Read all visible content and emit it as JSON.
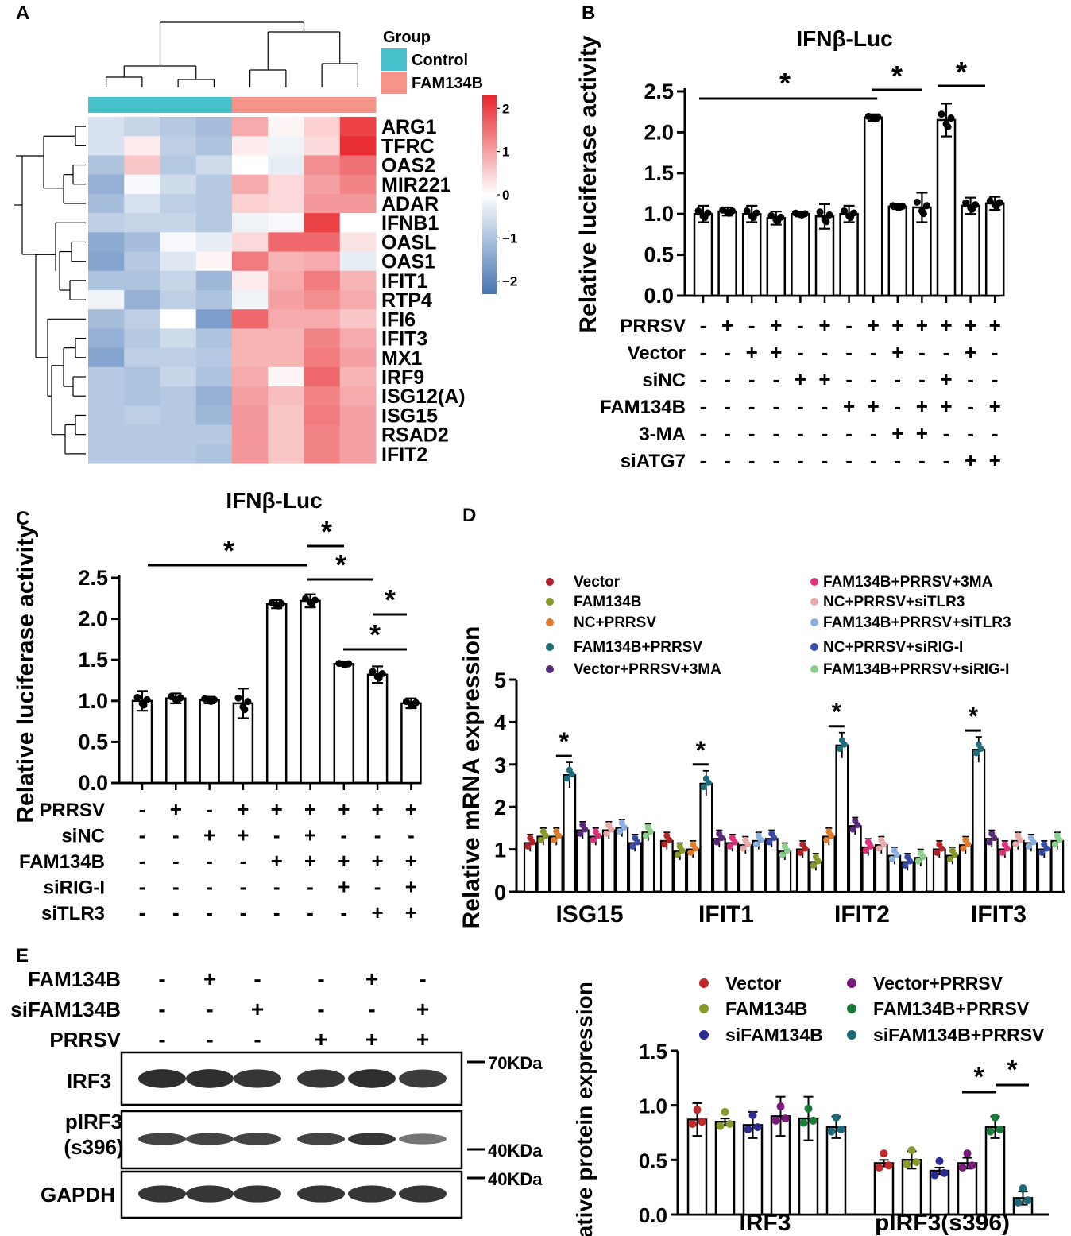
{
  "chart_data": [
    {
      "panel": "A",
      "type": "heatmap",
      "title": "",
      "legend_title": "Group",
      "groups": [
        {
          "name": "Control",
          "color": "#47c2cc"
        },
        {
          "name": "FAM134B",
          "color": "#f6948a"
        }
      ],
      "genes": [
        "ARG1",
        "TFRC",
        "OAS2",
        "MIR221",
        "ADAR",
        "IFNB1",
        "OASL",
        "OAS1",
        "IFIT1",
        "RTP4",
        "IFI6",
        "IFIT3",
        "MX1",
        "IRF9",
        "ISG12(A)",
        "ISG15",
        "RSAD2",
        "IFIT2"
      ],
      "values": [
        [
          -0.5,
          -0.7,
          -0.9,
          -1.1,
          0.9,
          0.1,
          0.5,
          2.0
        ],
        [
          -0.5,
          0.2,
          -0.8,
          -1.0,
          0.2,
          -0.2,
          0.4,
          2.2
        ],
        [
          -1.0,
          0.6,
          -0.9,
          -0.6,
          0.0,
          -0.3,
          1.2,
          1.5
        ],
        [
          -1.3,
          -0.1,
          -0.6,
          -0.9,
          0.9,
          0.4,
          1.0,
          1.3
        ],
        [
          -1.1,
          -0.5,
          -0.8,
          -0.9,
          0.5,
          0.4,
          1.1,
          1.1
        ],
        [
          -0.8,
          -0.7,
          -0.7,
          -0.9,
          -0.2,
          -0.1,
          2.0,
          0.0
        ],
        [
          -1.4,
          -1.1,
          -0.1,
          -0.3,
          0.4,
          1.6,
          1.6,
          0.3
        ],
        [
          -1.5,
          -0.9,
          -0.4,
          0.1,
          1.4,
          0.8,
          0.9,
          -0.3
        ],
        [
          -1.0,
          -1.0,
          -0.7,
          -1.2,
          0.2,
          0.9,
          1.4,
          0.8
        ],
        [
          -0.2,
          -1.3,
          -0.8,
          -1.0,
          -0.2,
          1.0,
          1.2,
          0.9
        ],
        [
          -1.1,
          -0.8,
          0.0,
          -1.6,
          1.6,
          0.9,
          0.9,
          0.6
        ],
        [
          -1.3,
          -0.9,
          -0.6,
          -1.0,
          0.8,
          0.8,
          1.3,
          0.9
        ],
        [
          -1.5,
          -0.8,
          -0.8,
          -0.9,
          0.8,
          0.8,
          1.4,
          1.0
        ],
        [
          -0.9,
          -1.0,
          -0.7,
          -1.0,
          0.9,
          0.1,
          1.6,
          0.8
        ],
        [
          -0.9,
          -1.0,
          -0.9,
          -1.3,
          1.0,
          0.7,
          1.3,
          0.9
        ],
        [
          -0.9,
          -0.8,
          -0.9,
          -1.2,
          1.1,
          0.6,
          1.4,
          1.0
        ],
        [
          -0.9,
          -0.9,
          -0.9,
          -0.9,
          1.1,
          0.6,
          1.3,
          1.0
        ],
        [
          -0.9,
          -0.9,
          -0.9,
          -1.0,
          1.1,
          0.6,
          1.3,
          1.0
        ]
      ],
      "colorbar": {
        "min": -2.3,
        "max": 2.3,
        "ticks": [
          "2",
          "1",
          "0",
          "−1",
          "−2"
        ],
        "low_color": "#4575b4",
        "mid_color": "#ffffff",
        "high_color": "#e8262b"
      }
    },
    {
      "panel": "B",
      "type": "bar",
      "title": "IFNβ-Luc",
      "ylabel": "Relative luciferase activity",
      "ylim": [
        0,
        2.5
      ],
      "yticks": [
        "0.0",
        "0.5",
        "1.0",
        "1.5",
        "2.0",
        "2.5"
      ],
      "values": [
        1.0,
        1.03,
        1.0,
        0.95,
        1.0,
        0.97,
        1.0,
        2.18,
        1.09,
        1.08,
        2.15,
        1.1,
        1.13
      ],
      "errors": [
        0.1,
        0.05,
        0.1,
        0.08,
        0.03,
        0.15,
        0.1,
        0.04,
        0.03,
        0.18,
        0.2,
        0.1,
        0.08
      ],
      "conditions": [
        {
          "label": "PRRSV",
          "signs": [
            "-",
            "+",
            "-",
            "+",
            "-",
            "+",
            "-",
            "+",
            "+",
            "+",
            "+",
            "+",
            "+"
          ]
        },
        {
          "label": "Vector",
          "signs": [
            "-",
            "-",
            "+",
            "+",
            "-",
            "-",
            "-",
            "-",
            "+",
            "-",
            "-",
            "+",
            "-"
          ]
        },
        {
          "label": "siNC",
          "signs": [
            "-",
            "-",
            "-",
            "-",
            "+",
            "+",
            "-",
            "-",
            "-",
            "-",
            "+",
            "-",
            "-"
          ]
        },
        {
          "label": "FAM134B",
          "signs": [
            "-",
            "-",
            "-",
            "-",
            "-",
            "-",
            "+",
            "+",
            "-",
            "+",
            "+",
            "-",
            "+"
          ]
        },
        {
          "label": "3-MA",
          "signs": [
            "-",
            "-",
            "-",
            "-",
            "-",
            "-",
            "-",
            "-",
            "+",
            "+",
            "-",
            "-",
            "-"
          ]
        },
        {
          "label": "siATG7",
          "signs": [
            "-",
            "-",
            "-",
            "-",
            "-",
            "-",
            "-",
            "-",
            "-",
            "-",
            "-",
            "+",
            "+"
          ]
        }
      ],
      "significance": [
        {
          "from": 0,
          "to": 7,
          "label": "*"
        },
        {
          "from": 8,
          "to": 9,
          "label": "*"
        },
        {
          "from": 10,
          "to": 11,
          "label": "*"
        }
      ]
    },
    {
      "panel": "C",
      "type": "bar",
      "title": "IFNβ-Luc",
      "ylabel": "Relative luciferase activity",
      "ylim": [
        0,
        2.5
      ],
      "yticks": [
        "0.0",
        "0.5",
        "1.0",
        "1.5",
        "2.0",
        "2.5"
      ],
      "values": [
        1.0,
        1.03,
        1.01,
        0.97,
        2.18,
        2.22,
        1.45,
        1.32,
        0.97
      ],
      "errors": [
        0.12,
        0.06,
        0.04,
        0.18,
        0.05,
        0.08,
        0.02,
        0.1,
        0.06
      ],
      "conditions": [
        {
          "label": "PRRSV",
          "signs": [
            "-",
            "+",
            "-",
            "+",
            "+",
            "+",
            "+",
            "+",
            "+"
          ]
        },
        {
          "label": "siNC",
          "signs": [
            "-",
            "-",
            "+",
            "+",
            "-",
            "+",
            "-",
            "-",
            "-"
          ]
        },
        {
          "label": "FAM134B",
          "signs": [
            "-",
            "-",
            "-",
            "-",
            "+",
            "+",
            "+",
            "+",
            "+"
          ]
        },
        {
          "label": "siRIG-I",
          "signs": [
            "-",
            "-",
            "-",
            "-",
            "-",
            "-",
            "+",
            "-",
            "+"
          ]
        },
        {
          "label": "siTLR3",
          "signs": [
            "-",
            "-",
            "-",
            "-",
            "-",
            "-",
            "-",
            "+",
            "+"
          ]
        }
      ],
      "significance": [
        {
          "from": 0,
          "to": 5,
          "label": "*"
        },
        {
          "from": 5,
          "to": 6,
          "label": "*"
        },
        {
          "from": 5,
          "to": 7,
          "label": "*"
        },
        {
          "from": 7,
          "to": 8,
          "label": "*"
        },
        {
          "from": 6,
          "to": 8,
          "label": "*"
        }
      ]
    },
    {
      "panel": "D",
      "type": "bar",
      "ylabel": "Relative  mRNA expression",
      "ylim": [
        0,
        5
      ],
      "yticks": [
        "0",
        "1",
        "2",
        "3",
        "4",
        "5"
      ],
      "categories": [
        "ISG15",
        "IFIT1",
        "IFIT2",
        "IFIT3"
      ],
      "series": [
        {
          "name": "Vector",
          "color": "#b22226",
          "values": [
            1.15,
            1.2,
            1.0,
            1.0
          ]
        },
        {
          "name": "FAM134B",
          "color": "#8a9a2a",
          "values": [
            1.3,
            0.95,
            0.7,
            0.85
          ]
        },
        {
          "name": "NC+PRRSV",
          "color": "#e07b2a",
          "values": [
            1.3,
            1.0,
            1.3,
            1.1
          ]
        },
        {
          "name": "FAM134B+PRRSV",
          "color": "#1f6e7a",
          "values": [
            2.75,
            2.55,
            3.45,
            3.35
          ]
        },
        {
          "name": "Vector+PRRSV+3MA",
          "color": "#5a2a7a",
          "values": [
            1.45,
            1.25,
            1.55,
            1.25
          ]
        },
        {
          "name": "FAM134B+PRRSV+3MA",
          "color": "#e0307a",
          "values": [
            1.3,
            1.15,
            1.05,
            1.0
          ]
        },
        {
          "name": "NC+PRRSV+siTLR3",
          "color": "#e8a8a8",
          "values": [
            1.45,
            1.1,
            1.1,
            1.2
          ]
        },
        {
          "name": "FAM134B+PRRSV+siTLR3",
          "color": "#8ab0e0",
          "values": [
            1.5,
            1.2,
            0.85,
            1.15
          ]
        },
        {
          "name": "NC+PRRSV+siRIG-I",
          "color": "#3a4aa8",
          "values": [
            1.15,
            1.25,
            0.7,
            1.0
          ]
        },
        {
          "name": "FAM134B+PRRSV+siRIG-I",
          "color": "#8ad08a",
          "values": [
            1.4,
            0.95,
            0.8,
            1.2
          ]
        }
      ],
      "significance": [
        {
          "category": "ISG15",
          "label": "*"
        },
        {
          "category": "IFIT1",
          "label": "*"
        },
        {
          "category": "IFIT2",
          "label": "*"
        },
        {
          "category": "IFIT3",
          "label": "*"
        }
      ]
    },
    {
      "panel": "E",
      "type": "western_blot",
      "conditions": [
        {
          "label": "FAM134B",
          "signs": [
            "-",
            "+",
            "-",
            "-",
            "+",
            "-"
          ]
        },
        {
          "label": "siFAM134B",
          "signs": [
            "-",
            "-",
            "+",
            "-",
            "-",
            "+"
          ]
        },
        {
          "label": "PRRSV",
          "signs": [
            "-",
            "-",
            "-",
            "+",
            "+",
            "+"
          ]
        }
      ],
      "blots": [
        {
          "label": "IRF3",
          "marker": "70KDa",
          "band_intensity": [
            0.95,
            0.95,
            0.9,
            0.9,
            0.95,
            0.85
          ]
        },
        {
          "label": "pIRF3",
          "sublabel": "(s396)",
          "marker": "40KDa",
          "band_intensity": [
            0.8,
            0.8,
            0.8,
            0.8,
            0.9,
            0.45
          ]
        },
        {
          "label": "GAPDH",
          "marker": "40KDa",
          "band_intensity": [
            0.9,
            0.9,
            0.9,
            0.9,
            0.9,
            0.9
          ]
        }
      ]
    },
    {
      "panel": "E",
      "type": "bar",
      "ylabel": "Relative  protein expression",
      "ylim": [
        0,
        1.5
      ],
      "yticks": [
        "0.0",
        "0.5",
        "1.0",
        "1.5"
      ],
      "categories": [
        "IRF3",
        "pIRF3(s396)"
      ],
      "series": [
        {
          "name": "Vector",
          "color": "#c0282b",
          "values": [
            0.87,
            0.47
          ],
          "errors": [
            0.15,
            0.03
          ]
        },
        {
          "name": "FAM134B",
          "color": "#8a9a2a",
          "values": [
            0.85,
            0.5
          ],
          "errors": [
            0.03,
            0.08
          ]
        },
        {
          "name": "siFAM134B",
          "color": "#2a2a90",
          "values": [
            0.82,
            0.4
          ],
          "errors": [
            0.12,
            0.03
          ]
        },
        {
          "name": "Vector+PRRSV",
          "color": "#7a1a7a",
          "values": [
            0.9,
            0.47
          ],
          "errors": [
            0.18,
            0.05
          ]
        },
        {
          "name": "FAM134B+PRRSV",
          "color": "#1a7a3a",
          "values": [
            0.88,
            0.8
          ],
          "errors": [
            0.2,
            0.1
          ]
        },
        {
          "name": "siFAM134B+PRRSV",
          "color": "#1a6a7a",
          "values": [
            0.8,
            0.15
          ],
          "errors": [
            0.1,
            0.06
          ]
        }
      ],
      "significance": [
        {
          "category": "pIRF3(s396)",
          "from": 3,
          "to": 4,
          "label": "*"
        },
        {
          "category": "pIRF3(s396)",
          "from": 4,
          "to": 5,
          "label": "*"
        }
      ]
    }
  ],
  "panels": {
    "A": "A",
    "B": "B",
    "C": "C",
    "D": "D",
    "E": "E"
  }
}
